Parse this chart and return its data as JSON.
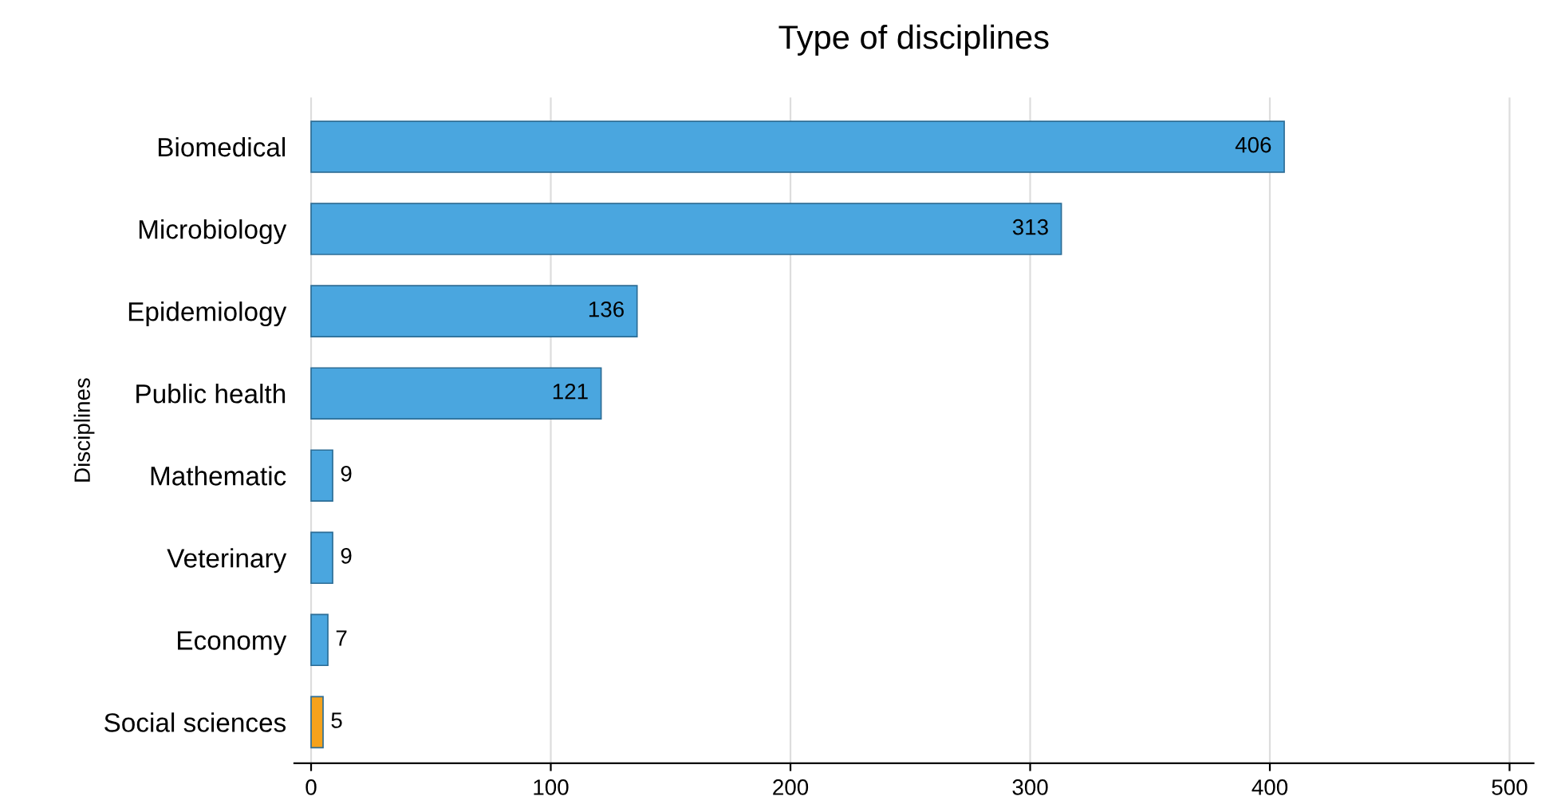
{
  "chart_data": {
    "type": "bar",
    "orientation": "horizontal",
    "title": "Type of disciplines",
    "ylabel": "Disciplines",
    "categories": [
      "Biomedical",
      "Microbiology",
      "Epidemiology",
      "Public health",
      "Mathematic",
      "Veterinary",
      "Economy",
      "Social sciences"
    ],
    "values": [
      406,
      313,
      136,
      121,
      9,
      9,
      7,
      5
    ],
    "colors": [
      "#4aa6df",
      "#4aa6df",
      "#4aa6df",
      "#4aa6df",
      "#4aa6df",
      "#4aa6df",
      "#4aa6df",
      "#f5a21c"
    ],
    "xlim": [
      -7,
      510
    ],
    "xticks": [
      0,
      100,
      200,
      300,
      400,
      500
    ],
    "grid": "x",
    "data_labels": true
  }
}
